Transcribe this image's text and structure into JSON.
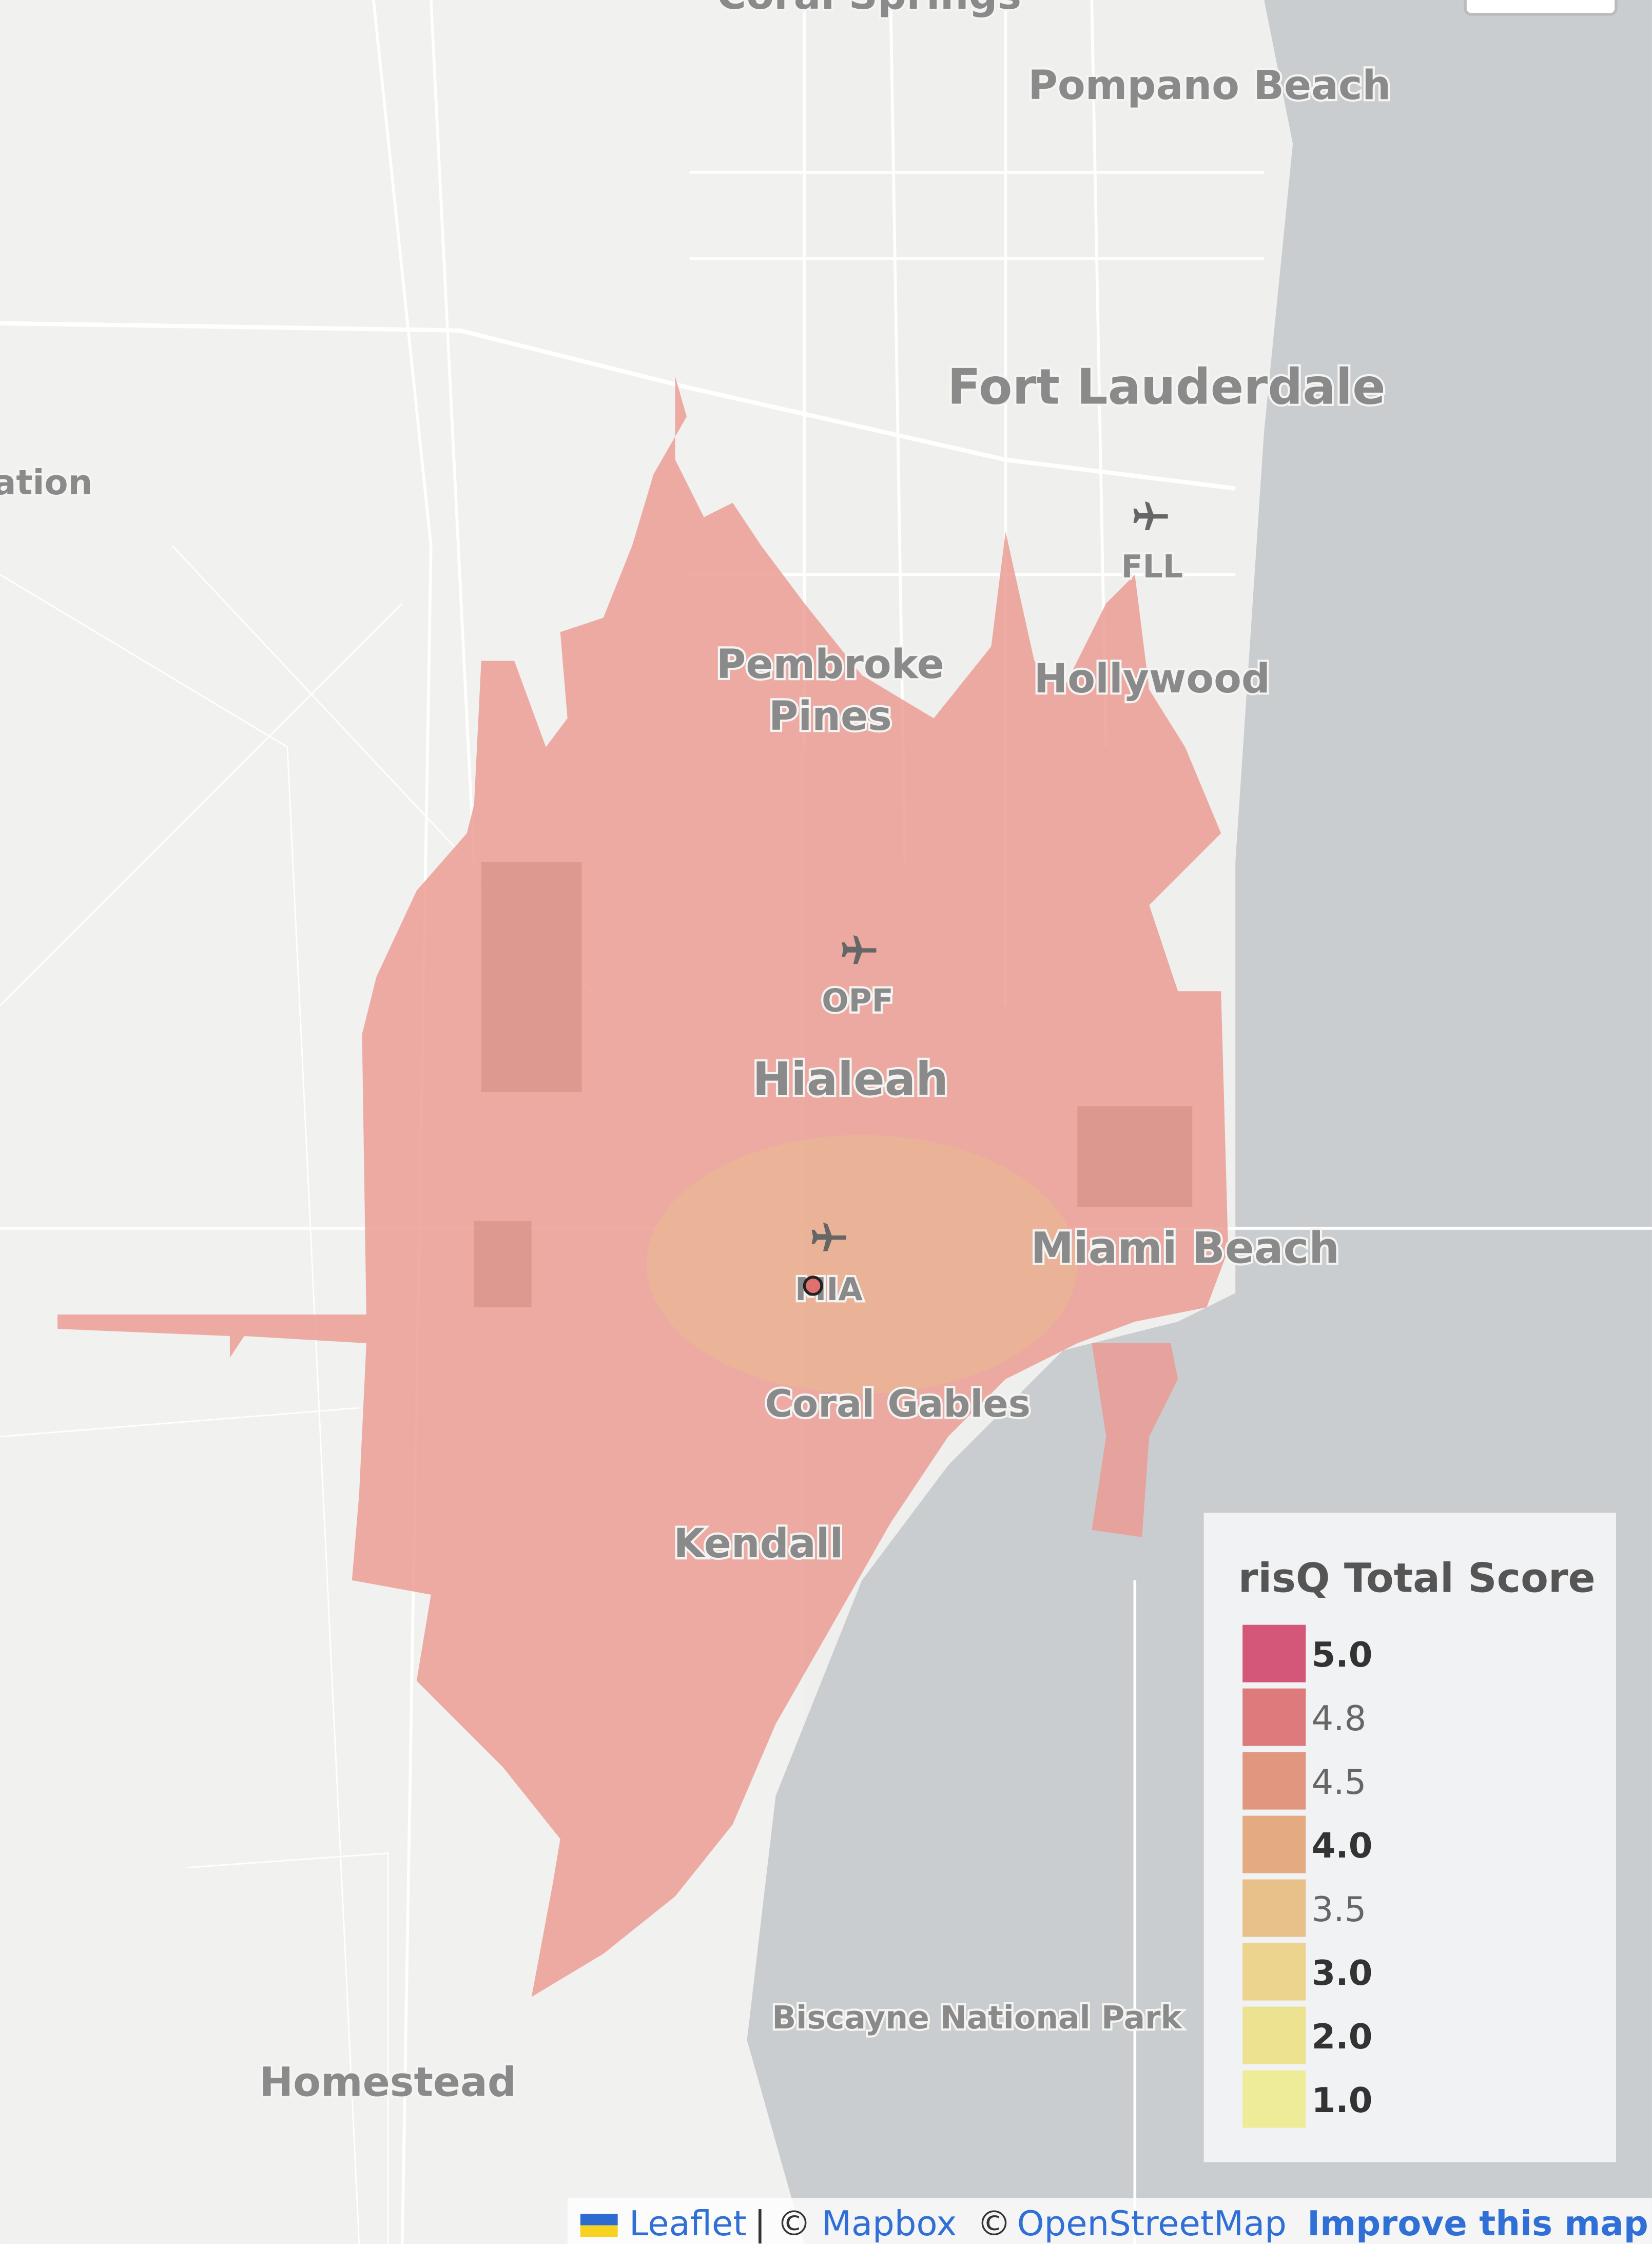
{
  "map": {
    "places": {
      "coral_springs": "Coral Springs",
      "cut_left": "ation",
      "pompano_beach": "Pompano Beach",
      "fort_lauderdale": "Fort Lauderdale",
      "fll": "FLL",
      "pembroke_pines": [
        "Pembroke",
        "Pines"
      ],
      "hollywood": "Hollywood",
      "opf": "OPF",
      "hialeah": "Hialeah",
      "miami_beach": "Miami Beach",
      "mia": "MIA",
      "coral_gables": "Coral Gables",
      "kendall": "Kendall",
      "biscayne": "Biscayne National Park",
      "homestead": "Homestead"
    }
  },
  "legend": {
    "title": "risQ Total Score",
    "items": [
      {
        "label": "5.0",
        "color": "#d4577a",
        "bold": true
      },
      {
        "label": "4.8",
        "color": "#dc7a7c",
        "bold": false
      },
      {
        "label": "4.5",
        "color": "#e0967f",
        "bold": false
      },
      {
        "label": "4.0",
        "color": "#e4ab82",
        "bold": true
      },
      {
        "label": "3.5",
        "color": "#e8c089",
        "bold": false
      },
      {
        "label": "3.0",
        "color": "#ecd48f",
        "bold": true
      },
      {
        "label": "2.0",
        "color": "#ede290",
        "bold": true
      },
      {
        "label": "1.0",
        "color": "#eeec99",
        "bold": true
      }
    ]
  },
  "attribution": {
    "leaflet": "Leaflet",
    "separator": "| ©",
    "mapbox": "Mapbox",
    "copy": "©",
    "osm": "OpenStreetMap",
    "improve": "Improve this map"
  }
}
